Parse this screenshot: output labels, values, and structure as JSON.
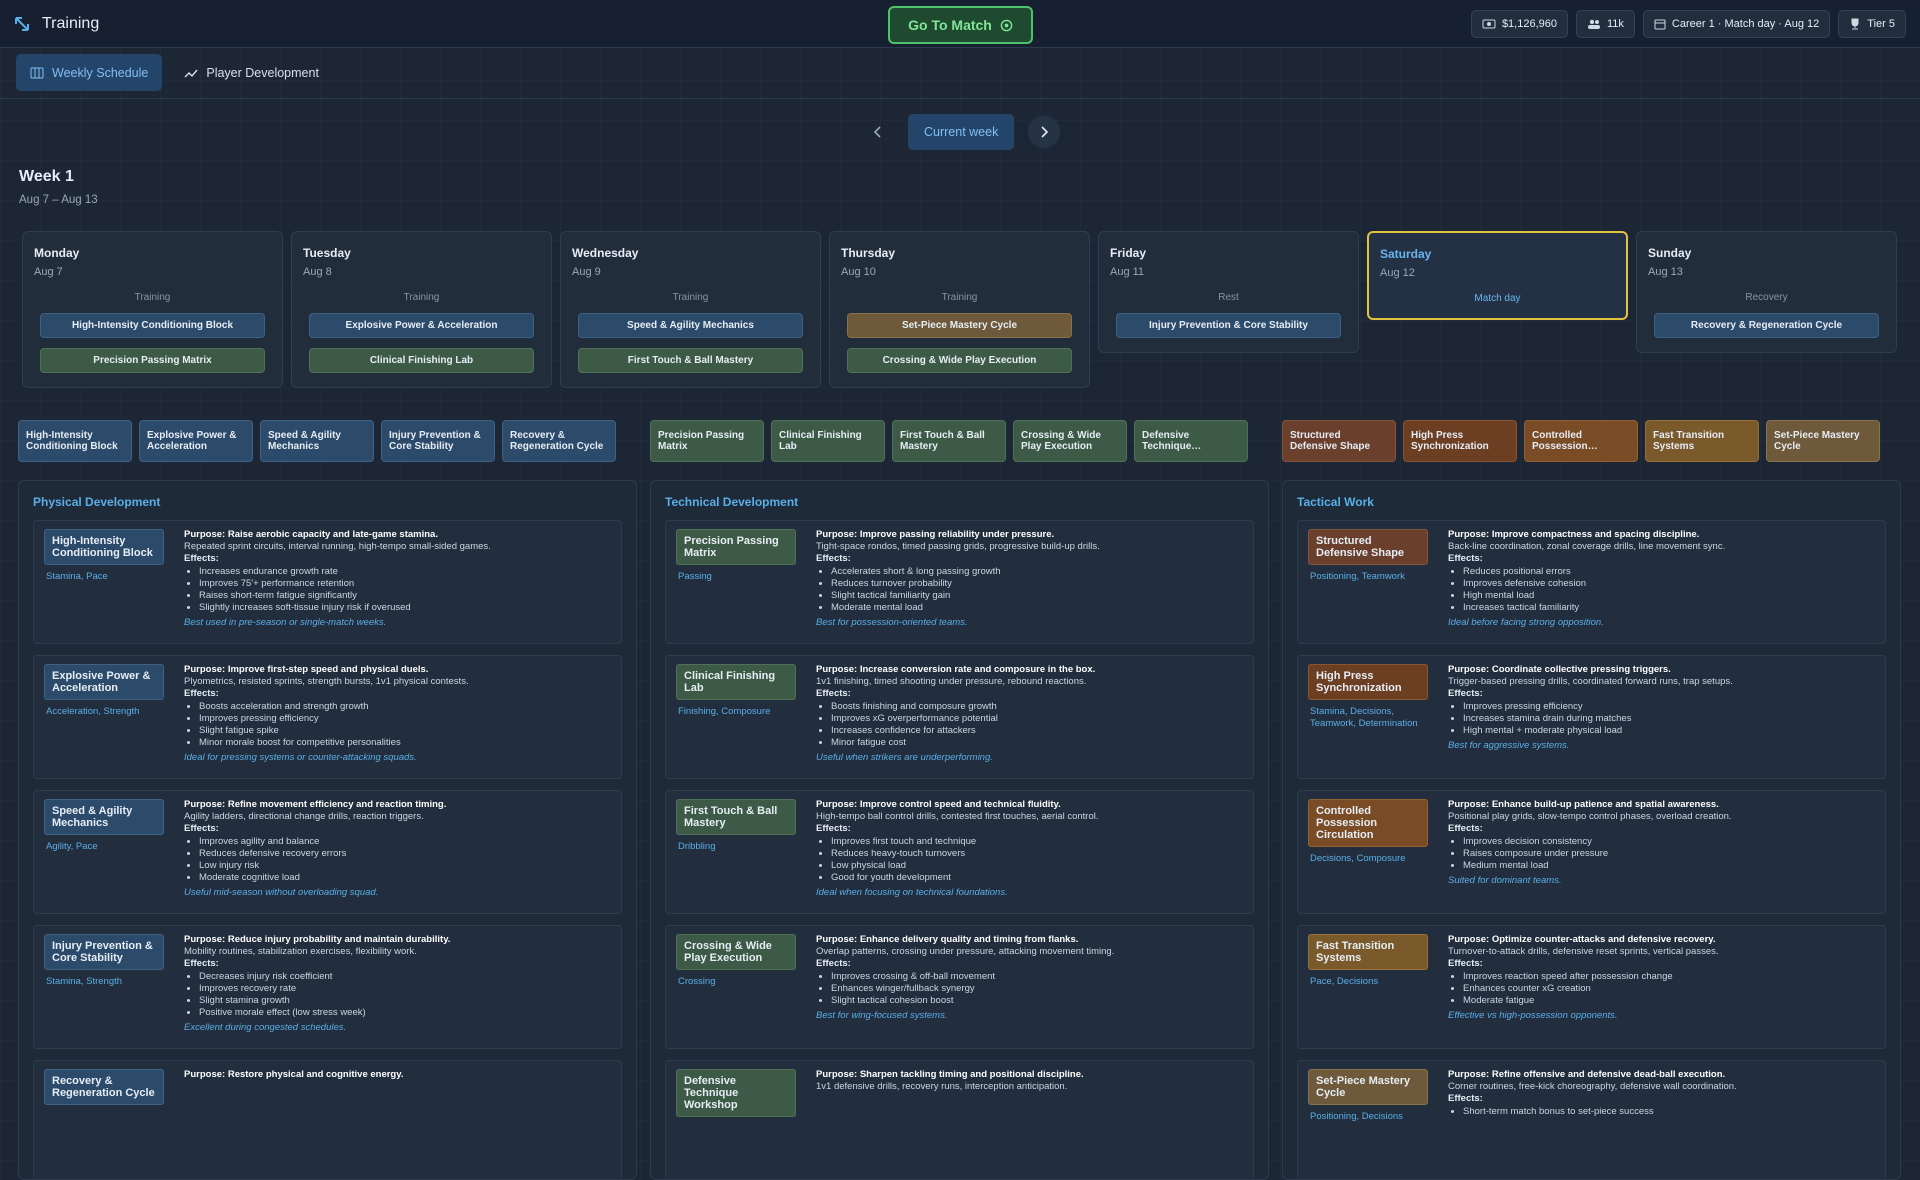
{
  "header": {
    "title": "Training",
    "go_to_match": "Go To Match",
    "money": "$1,126,960",
    "fans": "11k",
    "career": "Career 1 · Match day · Aug 12",
    "tier": "Tier 5"
  },
  "tabs": [
    "Weekly Schedule",
    "Player Development"
  ],
  "week_nav": {
    "current": "Current week"
  },
  "week": {
    "title": "Week 1",
    "range": "Aug 7 – Aug 13"
  },
  "days": [
    {
      "name": "Monday",
      "date": "Aug 7",
      "status": "Training",
      "sessions": [
        "High-Intensity Conditioning Block",
        "Precision Passing Matrix"
      ]
    },
    {
      "name": "Tuesday",
      "date": "Aug 8",
      "status": "Training",
      "sessions": [
        "Explosive Power & Acceleration",
        "Clinical Finishing Lab"
      ]
    },
    {
      "name": "Wednesday",
      "date": "Aug 9",
      "status": "Training",
      "sessions": [
        "Speed & Agility Mechanics",
        "First Touch & Ball Mastery"
      ]
    },
    {
      "name": "Thursday",
      "date": "Aug 10",
      "status": "Training",
      "sessions": [
        "Set-Piece Mastery Cycle",
        "Crossing & Wide Play Execution"
      ]
    },
    {
      "name": "Friday",
      "date": "Aug 11",
      "status": "Rest",
      "sessions": [
        "Injury Prevention & Core Stability"
      ]
    },
    {
      "name": "Saturday",
      "date": "Aug 12",
      "status": "Match day",
      "sessions": [],
      "selected": true
    },
    {
      "name": "Sunday",
      "date": "Aug 13",
      "status": "Recovery",
      "sessions": [
        "Recovery & Regeneration Cycle"
      ]
    }
  ],
  "labels": {
    "purpose": "Purpose:",
    "effects": "Effects:"
  },
  "columns": [
    {
      "title": "Physical Development",
      "cards": [
        {
          "name": "High-Intensity Conditioning Block",
          "tags": "Stamina, Pace",
          "purpose": "Raise aerobic capacity and late-game stamina.",
          "description": "Repeated sprint circuits, interval running, high-tempo small-sided games.",
          "effects": [
            "Increases endurance growth rate",
            "Improves 75'+ performance retention",
            "Raises short-term fatigue significantly",
            "Slightly increases soft-tissue injury risk if overused"
          ],
          "note": "Best used in pre-season or single-match weeks."
        },
        {
          "name": "Explosive Power & Acceleration",
          "tags": "Acceleration, Strength",
          "purpose": "Improve first-step speed and physical duels.",
          "description": "Plyometrics, resisted sprints, strength bursts, 1v1 physical contests.",
          "effects": [
            "Boosts acceleration and strength growth",
            "Improves pressing efficiency",
            "Slight fatigue spike",
            "Minor morale boost for competitive personalities"
          ],
          "note": "Ideal for pressing systems or counter-attacking squads."
        },
        {
          "name": "Speed & Agility Mechanics",
          "tags": "Agility, Pace",
          "purpose": "Refine movement efficiency and reaction timing.",
          "description": "Agility ladders, directional change drills, reaction triggers.",
          "effects": [
            "Improves agility and balance",
            "Reduces defensive recovery errors",
            "Low injury risk",
            "Moderate cognitive load"
          ],
          "note": "Useful mid-season without overloading squad."
        },
        {
          "name": "Injury Prevention & Core Stability",
          "tags": "Stamina, Strength",
          "purpose": "Reduce injury probability and maintain durability.",
          "description": "Mobility routines, stabilization exercises, flexibility work.",
          "effects": [
            "Decreases injury risk coefficient",
            "Improves recovery rate",
            "Slight stamina growth",
            "Positive morale effect (low stress week)"
          ],
          "note": "Excellent during congested schedules."
        },
        {
          "name": "Recovery & Regeneration Cycle",
          "purpose": "Restore physical and cognitive energy."
        }
      ]
    },
    {
      "title": "Technical Development",
      "cards": [
        {
          "name": "Precision Passing Matrix",
          "tags": "Passing",
          "purpose": "Improve passing reliability under pressure.",
          "description": "Tight-space rondos, timed passing grids, progressive build-up drills.",
          "effects": [
            "Accelerates short & long passing growth",
            "Reduces turnover probability",
            "Slight tactical familiarity gain",
            "Moderate mental load"
          ],
          "note": "Best for possession-oriented teams."
        },
        {
          "name": "Clinical Finishing Lab",
          "tags": "Finishing, Composure",
          "purpose": "Increase conversion rate and composure in the box.",
          "description": "1v1 finishing, timed shooting under pressure, rebound reactions.",
          "effects": [
            "Boosts finishing and composure growth",
            "Improves xG overperformance potential",
            "Increases confidence for attackers",
            "Minor fatigue cost"
          ],
          "note": "Useful when strikers are underperforming."
        },
        {
          "name": "First Touch & Ball Mastery",
          "tags": "Dribbling",
          "purpose": "Improve control speed and technical fluidity.",
          "description": "High-tempo ball control drills, contested first touches, aerial control.",
          "effects": [
            "Improves first touch and technique",
            "Reduces heavy-touch turnovers",
            "Low physical load",
            "Good for youth development"
          ],
          "note": "Ideal when focusing on technical foundations."
        },
        {
          "name": "Crossing & Wide Play Execution",
          "tags": "Crossing",
          "purpose": "Enhance delivery quality and timing from flanks.",
          "description": "Overlap patterns, crossing under pressure, attacking movement timing.",
          "effects": [
            "Improves crossing & off-ball movement",
            "Enhances winger/fullback synergy",
            "Slight tactical cohesion boost"
          ],
          "note": "Best for wing-focused systems."
        },
        {
          "name": "Defensive Technique Workshop",
          "purpose": "Sharpen tackling timing and positional discipline.",
          "description": "1v1 defensive drills, recovery runs, interception anticipation."
        }
      ]
    },
    {
      "title": "Tactical Work",
      "cards": [
        {
          "name": "Structured Defensive Shape",
          "tags": "Positioning, Teamwork",
          "purpose": "Improve compactness and spacing discipline.",
          "description": "Back-line coordination, zonal coverage drills, line movement sync.",
          "effects": [
            "Reduces positional errors",
            "Improves defensive cohesion",
            "High mental load",
            "Increases tactical familiarity"
          ],
          "note": "Ideal before facing strong opposition."
        },
        {
          "name": "High Press Synchronization",
          "tags": "Stamina, Decisions, Teamwork, Determination",
          "purpose": "Coordinate collective pressing triggers.",
          "description": "Trigger-based pressing drills, coordinated forward runs, trap setups.",
          "effects": [
            "Improves pressing efficiency",
            "Increases stamina drain during matches",
            "High mental + moderate physical load"
          ],
          "note": "Best for aggressive systems."
        },
        {
          "name": "Controlled Possession Circulation",
          "tags": "Decisions, Composure",
          "purpose": "Enhance build-up patience and spatial awareness.",
          "description": "Positional play grids, slow-tempo control phases, overload creation.",
          "effects": [
            "Improves decision consistency",
            "Raises composure under pressure",
            "Medium mental load"
          ],
          "note": "Suited for dominant teams."
        },
        {
          "name": "Fast Transition Systems",
          "tags": "Pace, Decisions",
          "purpose": "Optimize counter-attacks and defensive recovery.",
          "description": "Turnover-to-attack drills, defensive reset sprints, vertical passes.",
          "effects": [
            "Improves reaction speed after possession change",
            "Enhances counter xG creation",
            "Moderate fatigue"
          ],
          "note": "Effective vs high-possession opponents."
        },
        {
          "name": "Set-Piece Mastery Cycle",
          "tags": "Positioning, Decisions",
          "purpose": "Refine offensive and defensive dead-ball execution.",
          "description": "Corner routines, free-kick choreography, defensive wall coordination.",
          "effects": [
            "Short-term match bonus to set-piece success"
          ]
        }
      ]
    }
  ]
}
